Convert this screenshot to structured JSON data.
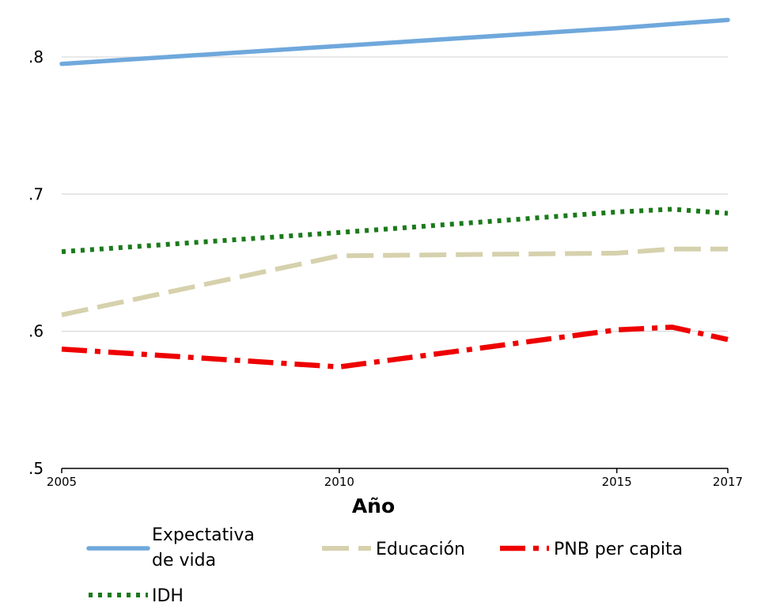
{
  "chart_data": {
    "type": "line",
    "title": "",
    "xlabel": "Año",
    "ylabel": "",
    "xlim": [
      2005,
      2017
    ],
    "ylim": [
      0.5,
      0.83
    ],
    "y_ticks": [
      ".5",
      ".6",
      ".7",
      ".8"
    ],
    "y_tick_values": [
      0.5,
      0.6,
      0.7,
      0.8
    ],
    "x_ticks": [
      "2005",
      "2010",
      "2015",
      "2017"
    ],
    "x_tick_values": [
      2005,
      2010,
      2015,
      2017
    ],
    "grid": true,
    "legend_position": "bottom",
    "series": [
      {
        "name": "Expectativa de vida",
        "legend_lines": [
          "Expectativa",
          "de vida"
        ],
        "color": "#6fa8dc",
        "style": "solid",
        "x": [
          2005,
          2010,
          2015,
          2017
        ],
        "y": [
          0.795,
          0.808,
          0.821,
          0.827
        ]
      },
      {
        "name": "Educación",
        "legend_lines": [
          "Educación"
        ],
        "color": "#d6d1ad",
        "style": "dashed",
        "x": [
          2005,
          2010,
          2015,
          2016,
          2017
        ],
        "y": [
          0.612,
          0.655,
          0.657,
          0.66,
          0.66
        ]
      },
      {
        "name": "PNB per capita",
        "legend_lines": [
          "PNB per capita"
        ],
        "color": "#ee0000",
        "style": "dashdot",
        "x": [
          2005,
          2010,
          2015,
          2016,
          2017
        ],
        "y": [
          0.587,
          0.574,
          0.601,
          0.603,
          0.594
        ]
      },
      {
        "name": "IDH",
        "legend_lines": [
          "IDH"
        ],
        "color": "#1a7a1a",
        "style": "dotted",
        "x": [
          2005,
          2010,
          2015,
          2016,
          2017
        ],
        "y": [
          0.658,
          0.672,
          0.687,
          0.689,
          0.686
        ]
      }
    ]
  }
}
